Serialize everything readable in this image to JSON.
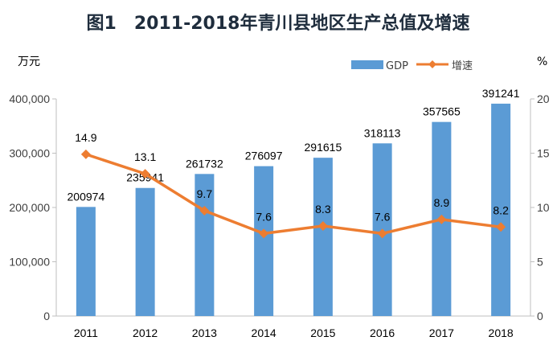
{
  "chart_data": {
    "type": "bar",
    "title": "图1　2011-2018年青川县地区生产总值及增速",
    "categories": [
      "2011",
      "2012",
      "2013",
      "2014",
      "2015",
      "2016",
      "2017",
      "2018"
    ],
    "series": [
      {
        "name": "GDP",
        "type": "bar",
        "axis": "left",
        "values": [
          200974,
          235941,
          261732,
          276097,
          291615,
          318113,
          357565,
          391241
        ],
        "labels": [
          "200974",
          "235941",
          "261732",
          "276097",
          "291615",
          "318113",
          "357565",
          "391241"
        ],
        "color": "#5b9bd5"
      },
      {
        "name": "增速",
        "type": "line",
        "axis": "right",
        "values": [
          14.9,
          13.1,
          9.7,
          7.6,
          8.3,
          7.6,
          8.9,
          8.2
        ],
        "labels": [
          "14.9",
          "13.1",
          "9.7",
          "7.6",
          "8.3",
          "7.6",
          "8.9",
          "8.2"
        ],
        "color": "#ed7d31"
      }
    ],
    "y_left": {
      "unit": "万元",
      "ylim": [
        0,
        400000
      ],
      "ticks": [
        0,
        100000,
        200000,
        300000,
        400000
      ],
      "tick_labels": [
        "0",
        "100,000",
        "200,000",
        "300,000",
        "400,000"
      ]
    },
    "y_right": {
      "unit": "%",
      "ylim": [
        0,
        20
      ],
      "ticks": [
        0,
        5,
        10,
        15,
        20
      ],
      "tick_labels": [
        "0",
        "5",
        "10",
        "15",
        "20"
      ]
    },
    "legend": [
      "GDP",
      "增速"
    ],
    "legend_position": "top-right",
    "grid": false
  }
}
